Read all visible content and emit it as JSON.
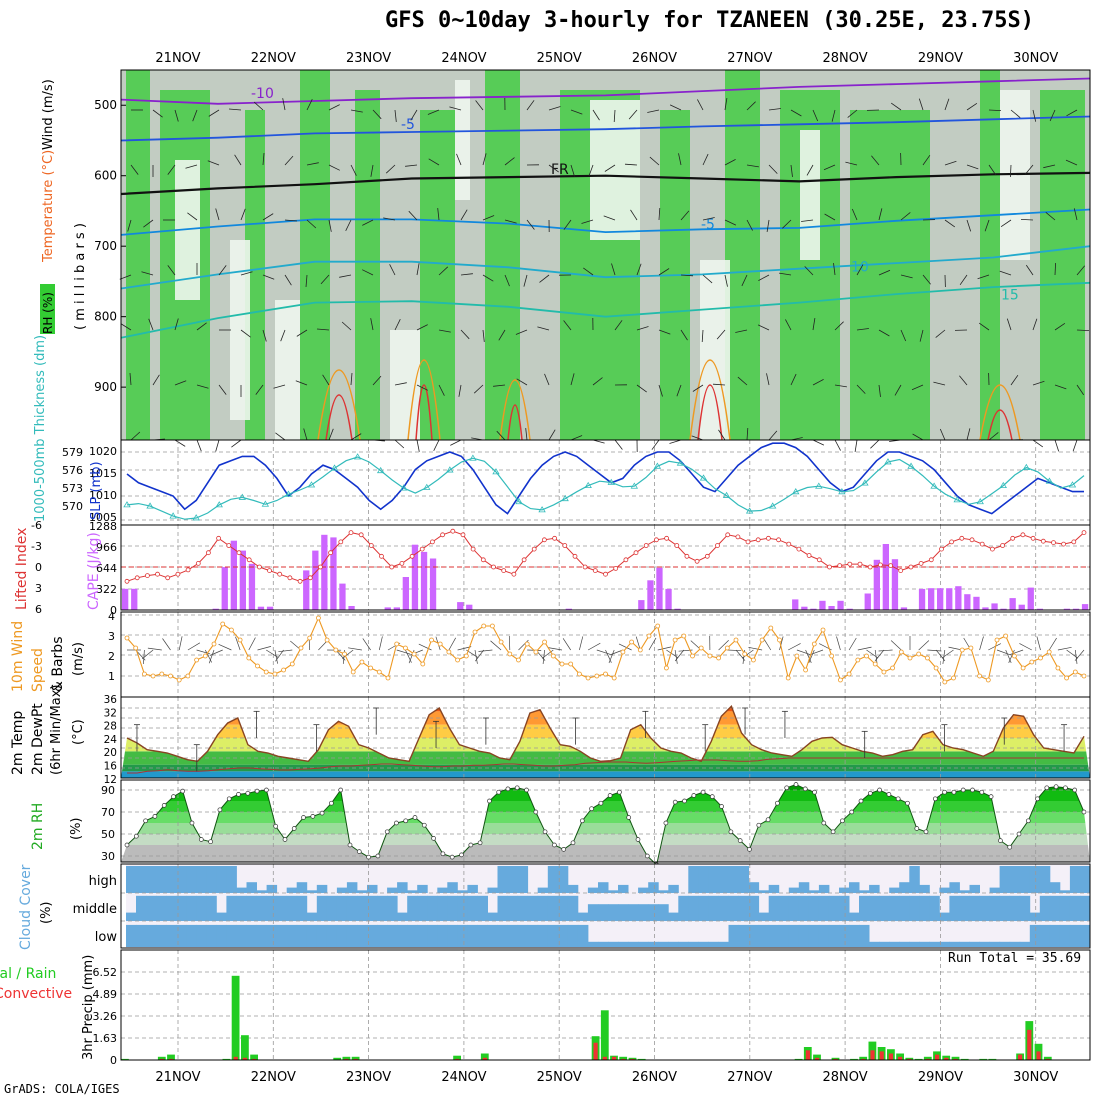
{
  "title": "GFS 0~10day 3-hourly for TZANEEN (30.25E, 23.75S)",
  "footer": "GrADS: COLA/IGES",
  "run_total": "Run Total = 35.69",
  "colors": {
    "rh_green": "#33cc33",
    "rh_light": "#cfe8cf",
    "grey": "#b8c4b8",
    "slp": "#1133cc",
    "thick": "#33bbbb",
    "lifted": "#dd3333",
    "cape": "#cc66ff",
    "wind": "#ee9922",
    "cloud": "#66aadd",
    "cloud_bg": "#f4f0f8",
    "precip_total": "#22cc22",
    "precip_conv": "#ee3333"
  },
  "chart_data": [
    {
      "type": "heatmap",
      "panel": "pressure-cross-section",
      "dates": [
        "21NOV",
        "22NOV",
        "23NOV",
        "24NOV",
        "25NOV",
        "26NOV",
        "27NOV",
        "28NOV",
        "29NOV",
        "30NOV"
      ],
      "ylabel": "( m i l l i b a r s )",
      "yticks": [
        "500",
        "600",
        "700",
        "800",
        "900"
      ],
      "legend_labels": [
        "RH (%)",
        "Temperature (°C)",
        "Wind (m/s)"
      ],
      "contour_labels": [
        "-10",
        "-10",
        "-5",
        "-5",
        "FR",
        "FR",
        "-5",
        "-3",
        "10",
        "10",
        "15",
        "15",
        "-10"
      ],
      "temperature_lines": [
        {
          "label": "-10",
          "values": [
            492,
            498,
            494,
            490,
            488,
            486,
            480,
            474,
            470,
            466,
            462
          ]
        },
        {
          "label": "-5",
          "values": [
            550,
            546,
            540,
            538,
            536,
            534,
            530,
            527,
            524,
            520,
            516
          ]
        },
        {
          "label": "FR",
          "values": [
            626,
            618,
            612,
            604,
            602,
            600,
            604,
            608,
            602,
            598,
            596
          ]
        },
        {
          "label": "-5",
          "values": [
            684,
            672,
            662,
            662,
            668,
            680,
            676,
            674,
            664,
            656,
            648
          ]
        },
        {
          "label": "10",
          "values": [
            760,
            740,
            722,
            722,
            730,
            744,
            740,
            732,
            724,
            716,
            700
          ]
        },
        {
          "label": "15",
          "values": [
            830,
            802,
            780,
            778,
            786,
            800,
            790,
            780,
            768,
            758,
            752
          ]
        }
      ]
    },
    {
      "type": "line",
      "panel": "slp-thickness",
      "ylabel_left": "1000-500mb Thickness (dm)",
      "ylabel_right": "SLP (mb)",
      "left_ticks": [
        "579",
        "576",
        "573",
        "570"
      ],
      "right_ticks": [
        "1020",
        "1015",
        "1010",
        "1005"
      ],
      "series": [
        {
          "name": "SLP (mb)",
          "values": [
            1015,
            1013,
            1012,
            1011,
            1010,
            1007,
            1009,
            1013,
            1017,
            1018,
            1019,
            1019,
            1017,
            1014,
            1010,
            1012,
            1015,
            1017,
            1016,
            1014,
            1012,
            1009,
            1007,
            1009,
            1012,
            1016,
            1018,
            1019,
            1020,
            1019,
            1016,
            1012,
            1008,
            1006,
            1010,
            1014,
            1017,
            1019,
            1020,
            1019,
            1017,
            1015,
            1013,
            1014,
            1017,
            1019,
            1020,
            1020,
            1018,
            1015,
            1012,
            1011,
            1014,
            1017,
            1019,
            1021,
            1022,
            1022,
            1021,
            1019,
            1016,
            1013,
            1011,
            1012,
            1015,
            1018,
            1020,
            1020,
            1019,
            1018,
            1016,
            1013,
            1010,
            1008,
            1007,
            1006,
            1008,
            1010,
            1012,
            1014,
            1013,
            1012,
            1011,
            1011
          ]
        },
        {
          "name": "Thickness (dm)",
          "values": [
            570.5,
            570.7,
            570.3,
            569.5,
            568.7,
            568.2,
            568.4,
            569.2,
            570.5,
            571.4,
            571.7,
            571.2,
            570.6,
            571.2,
            572.2,
            572.9,
            573.7,
            575.0,
            576.4,
            577.6,
            578.2,
            577.4,
            576.0,
            574.5,
            573.2,
            572.4,
            573.3,
            574.6,
            576.1,
            577.4,
            578.0,
            577.5,
            575.8,
            573.4,
            571.0,
            569.9,
            569.7,
            570.5,
            571.5,
            572.6,
            573.6,
            574.3,
            574.1,
            573.4,
            573.5,
            574.9,
            576.7,
            577.5,
            577.2,
            576.2,
            574.8,
            573.1,
            572.0,
            570.5,
            569.5,
            569.6,
            570.3,
            571.4,
            572.6,
            573.3,
            573.5,
            573.1,
            572.6,
            572.8,
            574.0,
            575.8,
            577.4,
            577.8,
            576.7,
            575.2,
            573.5,
            572.2,
            571.3,
            570.6,
            571.0,
            572.3,
            573.6,
            575.3,
            576.5,
            575.8,
            574.3,
            573.2,
            573.7,
            575.2
          ]
        }
      ]
    },
    {
      "type": "bar",
      "panel": "lifted-cape",
      "ylabel_left": "Lifted Index",
      "ylabel_right": "CAPE (J/kg)",
      "left_ticks": [
        "-6",
        "-3",
        "0",
        "3",
        "6"
      ],
      "right_ticks": [
        "1288",
        "966",
        "644",
        "322",
        "0"
      ],
      "cape": [
        322,
        322,
        0,
        0,
        0,
        0,
        0,
        0,
        0,
        0,
        20,
        650,
        1050,
        900,
        700,
        50,
        50,
        0,
        0,
        0,
        600,
        900,
        1140,
        1100,
        400,
        60,
        0,
        0,
        0,
        40,
        40,
        500,
        990,
        880,
        780,
        0,
        0,
        120,
        80,
        0,
        0,
        0,
        0,
        0,
        0,
        0,
        0,
        0,
        0,
        20,
        0,
        0,
        0,
        0,
        0,
        0,
        0,
        150,
        450,
        640,
        320,
        20,
        0,
        0,
        0,
        0,
        0,
        0,
        0,
        0,
        0,
        0,
        0,
        0,
        160,
        50,
        20,
        140,
        60,
        140,
        20,
        0,
        250,
        760,
        1000,
        770,
        40,
        0,
        320,
        330,
        330,
        330,
        360,
        240,
        200,
        40,
        100,
        20,
        180,
        80,
        340,
        20,
        0,
        0,
        20,
        20,
        90
      ],
      "lifted_index": [
        2,
        1.5,
        1.2,
        1.0,
        1.5,
        1.0,
        0.4,
        -0.5,
        -2,
        -4,
        -3,
        -2,
        -1,
        0,
        0.5,
        1,
        1.5,
        2,
        1.5,
        0,
        -2,
        -3.5,
        -4.8,
        -4.5,
        -3,
        -1.5,
        0,
        -0.5,
        -1.5,
        -2.5,
        -3.5,
        -4.5,
        -5,
        -4.5,
        -2.5,
        -1,
        0,
        0.5,
        1,
        -1,
        -2.5,
        -3.8,
        -4,
        -3,
        -1.5,
        0,
        0.5,
        1,
        0.2,
        -1,
        -2,
        -3,
        -3.8,
        -4,
        -3,
        -1.5,
        -0.8,
        -1.5,
        -3,
        -4.5,
        -4.2,
        -3.5,
        -3.8,
        -4,
        -3.8,
        -3.2,
        -2.5,
        -1.6,
        -1,
        0,
        -0.2,
        -0.4,
        -0.4,
        0,
        -0.3,
        -0.2,
        0.5,
        0,
        -0.5,
        -1,
        -2.5,
        -3.5,
        -4,
        -3.8,
        -3.2,
        -2.5,
        -3,
        -4,
        -4.5,
        -4,
        -3.6,
        -3.4,
        -3.2,
        -3.5,
        -4.8
      ]
    },
    {
      "type": "line",
      "panel": "10m-wind",
      "ylabel": "10m Wind Speed (m/s) & Barbs",
      "y_ticks": [
        "4",
        "3",
        "2",
        "1"
      ],
      "values": [
        2.9,
        2.4,
        1.1,
        1.0,
        1.1,
        1.0,
        0.8,
        1.0,
        1.8,
        2.0,
        2.6,
        3.6,
        3.3,
        2.8,
        1.9,
        1.5,
        1.2,
        1.1,
        1.3,
        1.6,
        2.4,
        2.9,
        3.9,
        2.8,
        2.3,
        2.1,
        1.2,
        1.7,
        1.4,
        1.2,
        0.9,
        2.6,
        2.4,
        2.1,
        1.6,
        2.8,
        2.6,
        2.2,
        1.8,
        2.0,
        3.2,
        3.5,
        3.5,
        2.7,
        2.1,
        1.8,
        2.6,
        2.2,
        2.7,
        2.0,
        1.6,
        1.6,
        1.1,
        0.9,
        1.0,
        1.1,
        0.9,
        2.2,
        2.7,
        2.3,
        3.0,
        3.5,
        1.4,
        2.8,
        3.0,
        2.0,
        2.4,
        2.0,
        1.9,
        2.4,
        2.8,
        2.1,
        1.8,
        2.8,
        3.4,
        2.8,
        0.9,
        2.0,
        1.3,
        2.6,
        3.3,
        2.0,
        0.8,
        1.1,
        1.8,
        2.0,
        1.6,
        1.2,
        1.4,
        2.2,
        1.9,
        2.1,
        1.9,
        1.4,
        0.7,
        0.9,
        2.3,
        2.4,
        1.0,
        0.8,
        2.8,
        3.0,
        2.0,
        1.4,
        1.7,
        1.9,
        2.2,
        1.4,
        0.9,
        1.2,
        1.0
      ]
    },
    {
      "type": "area",
      "panel": "2m-temp",
      "ylabel": "2m Temp 2m DewPt (6hr Min/Max) (°C)",
      "y_ticks": [
        "36",
        "32",
        "28",
        "24",
        "20",
        "16",
        "12"
      ],
      "temp": [
        24,
        22.5,
        20.5,
        20,
        19.5,
        18.5,
        17.5,
        17,
        20,
        25,
        28.5,
        30,
        22,
        20,
        19.5,
        18.5,
        18,
        17.5,
        17,
        20.5,
        26.5,
        29,
        27.5,
        22,
        21,
        19.5,
        18,
        17.5,
        17,
        24,
        31,
        33,
        27,
        22,
        21,
        20,
        19.5,
        18,
        17.5,
        23,
        31.5,
        32.5,
        27,
        22,
        21.5,
        20,
        18,
        17,
        17.2,
        18,
        26.5,
        28,
        24,
        21,
        20,
        19.5,
        18,
        17,
        23,
        30.5,
        33.5,
        25.5,
        22,
        20.5,
        19.5,
        19,
        18.5,
        20.5,
        23,
        24,
        24.2,
        22,
        21,
        20,
        19.5,
        18.5,
        19,
        20,
        20.5,
        25,
        26,
        22,
        21,
        20.5,
        19.5,
        18.5,
        20,
        27,
        31,
        30.5,
        25,
        21,
        20.5,
        20,
        19.5,
        24.5
      ],
      "dewpoint": [
        13.5,
        13.5,
        14,
        14.2,
        14.5,
        14.2,
        14,
        14,
        14.2,
        14.5,
        14.8,
        15,
        15,
        14.8,
        14.6,
        14.4,
        14.4,
        14.6,
        14.8,
        15,
        15.4,
        15.6,
        15.6,
        15.8,
        16,
        16.2,
        16.2,
        16,
        15.8,
        15.6,
        15.4,
        15.4,
        15.6,
        15.6,
        15.8,
        15.8,
        16,
        16.2,
        16.2,
        16,
        15.8,
        15.6,
        15.6,
        15.8,
        16,
        16.4,
        16.6,
        16.8,
        16.8,
        16.8,
        16.6,
        16.4,
        16.6,
        16.8,
        17,
        17.2,
        17.4,
        17.4,
        17.4,
        17.2,
        17,
        17,
        17.2,
        17.6,
        17.8,
        18,
        18,
        18,
        18,
        18,
        18,
        18,
        18,
        18,
        18,
        18,
        18,
        18,
        18,
        18,
        18,
        18,
        18,
        18,
        18,
        18,
        18,
        18,
        18,
        18,
        18,
        18,
        18,
        18,
        18
      ]
    },
    {
      "type": "area",
      "panel": "2m-rh",
      "ylabel": "2m RH (%)",
      "y_ticks": [
        "90",
        "70",
        "50",
        "30"
      ],
      "values": [
        40,
        48,
        62,
        66,
        76,
        84,
        89,
        60,
        45,
        43,
        72,
        82,
        86,
        87,
        89,
        90,
        57,
        45,
        55,
        65,
        66,
        69,
        78,
        90,
        40,
        34,
        29,
        30,
        52,
        60,
        62,
        65,
        58,
        46,
        32,
        29,
        31,
        40,
        42,
        80,
        88,
        91,
        92,
        90,
        70,
        52,
        40,
        36,
        42,
        62,
        73,
        78,
        85,
        88,
        65,
        45,
        30,
        22,
        60,
        79,
        80,
        85,
        88,
        84,
        75,
        52,
        44,
        36,
        58,
        63,
        78,
        92,
        95,
        91,
        88,
        60,
        52,
        62,
        70,
        80,
        87,
        90,
        86,
        82,
        78,
        55,
        52,
        82,
        88,
        88,
        90,
        90,
        88,
        84,
        44,
        38,
        50,
        62,
        82,
        92,
        93,
        92,
        90,
        70
      ]
    },
    {
      "type": "heatmap",
      "panel": "cloud-cover",
      "ylabel": "Cloud Cover (%)",
      "row_labels": [
        "high",
        "middle",
        "low"
      ]
    },
    {
      "type": "bar",
      "panel": "precip",
      "ylabel": "3hr Precip (mm)",
      "ylabel_left": "Total / Rain Convective",
      "y_ticks": [
        "6.52",
        "4.89",
        "3.26",
        "1.63",
        "0"
      ],
      "total": [
        0.1,
        0,
        0,
        0,
        0.3,
        0.5,
        0,
        0,
        0,
        0,
        0,
        0.1,
        7.8,
        2.3,
        0.5,
        0,
        0,
        0,
        0,
        0,
        0,
        0,
        0,
        0.2,
        0.3,
        0.3,
        0,
        0,
        0,
        0,
        0,
        0,
        0,
        0,
        0,
        0,
        0.4,
        0,
        0,
        0.6,
        0,
        0,
        0,
        0,
        0,
        0,
        0,
        0,
        0,
        0,
        0,
        2.2,
        4.6,
        0.4,
        0.3,
        0.2,
        0.1,
        0,
        0,
        0,
        0,
        0,
        0,
        0,
        0,
        0,
        0,
        0,
        0,
        0,
        0,
        0,
        0,
        0.1,
        1.2,
        0.5,
        0,
        0.2,
        0,
        0.1,
        0.3,
        1.7,
        1.2,
        1.0,
        0.6,
        0.2,
        0.1,
        0.3,
        0.8,
        0.4,
        0.3,
        0.1,
        0,
        0.1,
        0.1,
        0,
        0,
        0.6,
        3.6,
        1.5,
        0.3,
        0,
        0,
        0,
        0
      ],
      "convective": [
        0,
        0,
        0,
        0,
        0.1,
        0.1,
        0,
        0,
        0,
        0,
        0,
        0,
        0.3,
        0.2,
        0.1,
        0,
        0,
        0,
        0,
        0,
        0,
        0,
        0,
        0,
        0.1,
        0.1,
        0,
        0,
        0,
        0,
        0,
        0,
        0,
        0,
        0,
        0,
        0.1,
        0,
        0,
        0.2,
        0,
        0,
        0,
        0,
        0,
        0,
        0,
        0,
        0,
        0,
        0,
        1.6,
        0.3,
        0.3,
        0.1,
        0.1,
        0,
        0,
        0,
        0,
        0,
        0,
        0,
        0,
        0,
        0,
        0,
        0,
        0,
        0,
        0,
        0,
        0,
        0,
        0.9,
        0.2,
        0,
        0.1,
        0,
        0,
        0.1,
        0.9,
        0.8,
        0.6,
        0.3,
        0.1,
        0,
        0.1,
        0.5,
        0.2,
        0.1,
        0,
        0,
        0,
        0,
        0,
        0,
        0.5,
        2.8,
        0.8,
        0.1,
        0,
        0,
        0,
        0
      ]
    }
  ]
}
